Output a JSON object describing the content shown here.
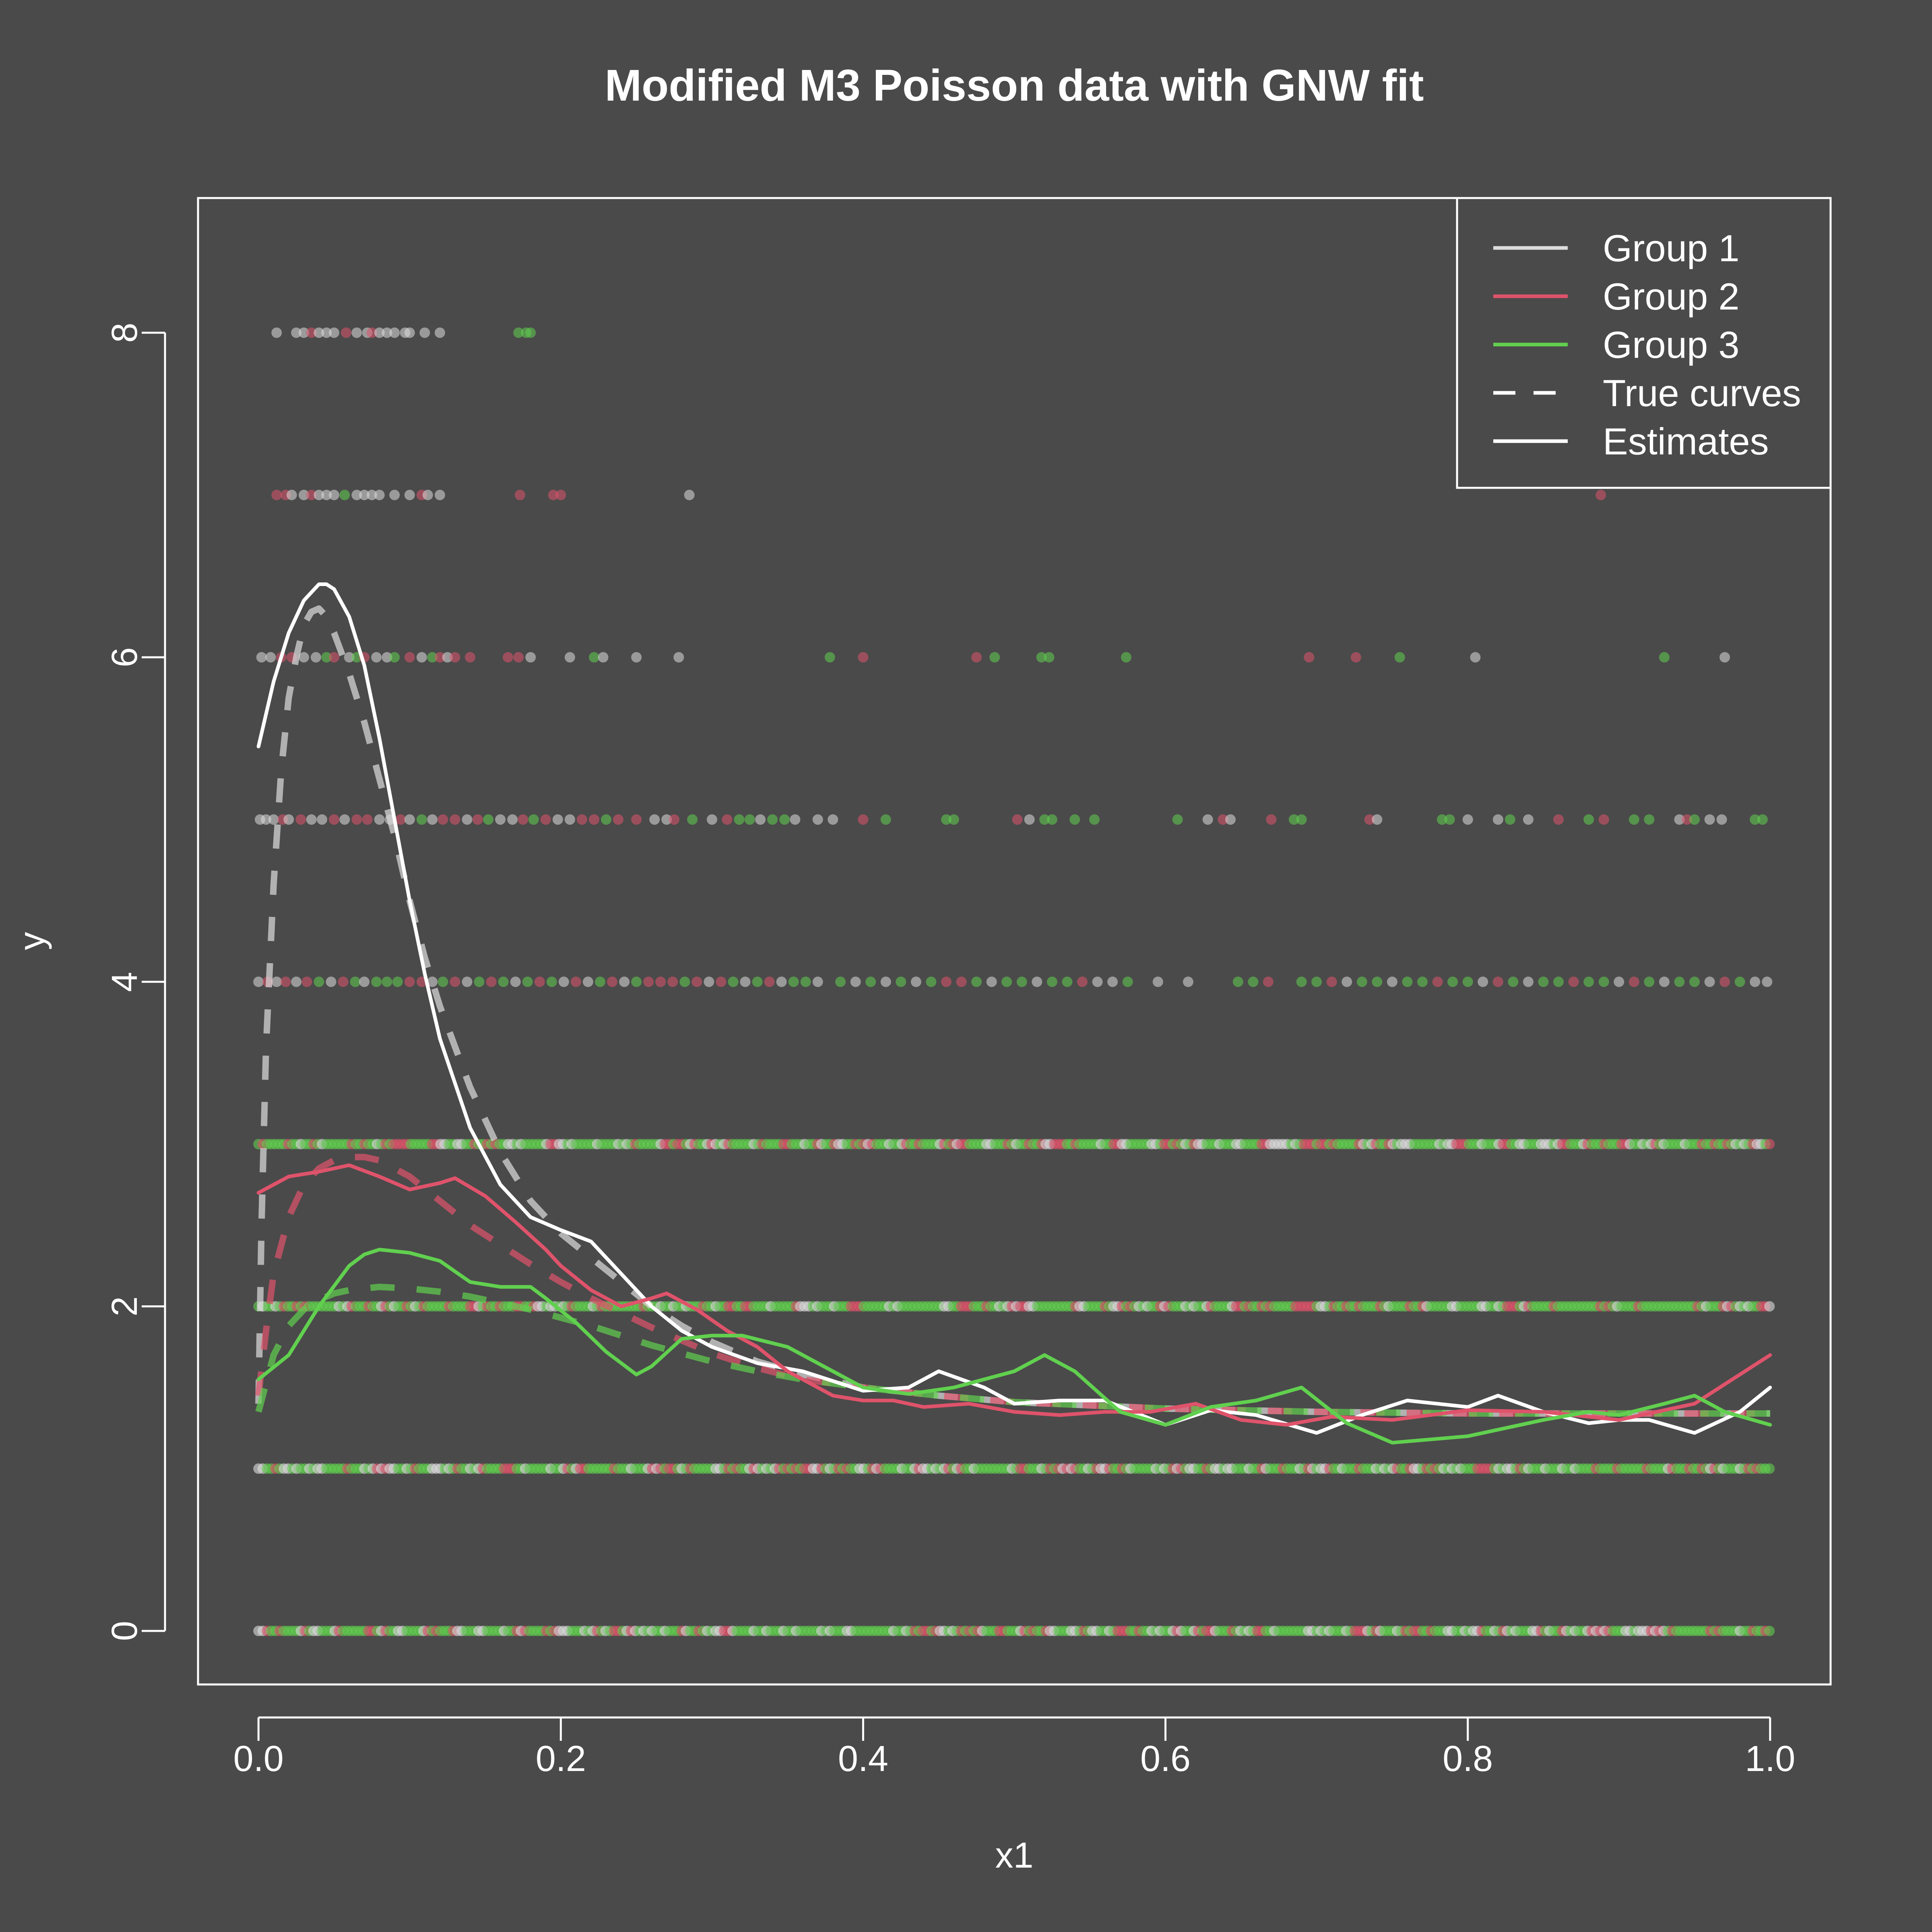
{
  "chart_data": {
    "type": "scatter",
    "title": "Modified M3 Poisson data with GNW fit",
    "xlabel": "x1",
    "ylabel": "y",
    "xlim": [
      -0.04,
      1.04
    ],
    "ylim": [
      -0.33,
      8.83
    ],
    "x_ticks": [
      "0.0",
      "0.2",
      "0.4",
      "0.6",
      "0.8",
      "1.0"
    ],
    "y_ticks": [
      "0",
      "2",
      "4",
      "6",
      "8"
    ],
    "legend_position": "top-right",
    "legend": [
      {
        "label": "Group 1",
        "color": "#DDDDDD",
        "style": "solid"
      },
      {
        "label": "Group 2",
        "color": "#DF536B",
        "style": "solid"
      },
      {
        "label": "Group 3",
        "color": "#61D04F",
        "style": "solid"
      },
      {
        "label": "True curves",
        "color": "#FFFFFF",
        "style": "dashed"
      },
      {
        "label": "Estimates",
        "color": "#FFFFFF",
        "style": "solid"
      }
    ],
    "colors": {
      "group1": "#DDDDDD",
      "group2": "#DF536B",
      "group3": "#61D04F",
      "background": "#4A4A4A",
      "frame": "#FFFFFF"
    },
    "point_levels": [
      {
        "y": 8,
        "x": [
          0.012,
          0.025,
          0.03,
          0.035,
          0.04,
          0.045,
          0.05,
          0.058,
          0.065,
          0.072,
          0.075,
          0.08,
          0.085,
          0.09,
          0.097,
          0.1,
          0.11,
          0.12,
          0.172,
          0.177,
          0.18
        ],
        "g": [
          1,
          1,
          1,
          2,
          1,
          1,
          1,
          2,
          1,
          1,
          2,
          1,
          1,
          1,
          1,
          1,
          1,
          1,
          3,
          3,
          3
        ]
      },
      {
        "y": 7,
        "x": [
          0.012,
          0.018,
          0.022,
          0.03,
          0.035,
          0.04,
          0.045,
          0.05,
          0.057,
          0.065,
          0.07,
          0.075,
          0.08,
          0.09,
          0.1,
          0.108,
          0.112,
          0.12,
          0.173,
          0.195,
          0.2,
          0.285,
          0.888
        ],
        "g": [
          2,
          2,
          1,
          1,
          2,
          1,
          1,
          1,
          3,
          1,
          1,
          1,
          1,
          1,
          1,
          2,
          1,
          1,
          2,
          2,
          2,
          1,
          2
        ]
      },
      {
        "y": 6,
        "x": [
          0.002,
          0.008,
          0.015,
          0.022,
          0.03,
          0.038,
          0.045,
          0.05,
          0.06,
          0.065,
          0.07,
          0.078,
          0.085,
          0.09,
          0.1,
          0.108,
          0.115,
          0.12,
          0.125,
          0.13,
          0.14,
          0.165,
          0.172,
          0.18,
          0.206,
          0.222,
          0.228,
          0.25,
          0.278,
          0.378,
          0.4,
          0.475,
          0.487,
          0.518,
          0.523,
          0.574,
          0.695,
          0.726,
          0.755,
          0.805,
          0.93,
          0.97
        ],
        "g": [
          1,
          1,
          2,
          2,
          1,
          1,
          3,
          2,
          1,
          3,
          2,
          1,
          1,
          3,
          2,
          1,
          3,
          2,
          1,
          2,
          2,
          2,
          2,
          1,
          1,
          3,
          1,
          1,
          1,
          3,
          2,
          2,
          3,
          3,
          3,
          3,
          2,
          2,
          3,
          1,
          3,
          1
        ]
      },
      {
        "y": 5,
        "x": [
          0.001,
          0.005,
          0.01,
          0.016,
          0.02,
          0.028,
          0.035,
          0.042,
          0.05,
          0.057,
          0.065,
          0.072,
          0.08,
          0.087,
          0.094,
          0.1,
          0.108,
          0.115,
          0.122,
          0.13,
          0.138,
          0.145,
          0.152,
          0.16,
          0.168,
          0.175,
          0.182,
          0.19,
          0.198,
          0.206,
          0.214,
          0.222,
          0.23,
          0.238,
          0.25,
          0.262,
          0.27,
          0.275,
          0.287,
          0.3,
          0.31,
          0.318,
          0.325,
          0.332,
          0.34,
          0.348,
          0.355,
          0.37,
          0.38,
          0.4,
          0.415,
          0.455,
          0.46,
          0.502,
          0.51,
          0.52,
          0.525,
          0.54,
          0.553,
          0.608,
          0.628,
          0.638,
          0.643,
          0.67,
          0.685,
          0.69,
          0.735,
          0.74,
          0.783,
          0.788,
          0.8,
          0.82,
          0.828,
          0.84,
          0.86,
          0.88,
          0.89,
          0.91,
          0.92,
          0.94,
          0.945,
          0.95,
          0.96,
          0.968,
          0.99,
          0.995
        ],
        "g": [
          1,
          1,
          1,
          2,
          1,
          2,
          1,
          1,
          2,
          1,
          2,
          2,
          1,
          1,
          2,
          1,
          3,
          1,
          2,
          2,
          1,
          2,
          3,
          1,
          1,
          2,
          3,
          2,
          1,
          1,
          2,
          2,
          3,
          2,
          2,
          1,
          1,
          2,
          3,
          1,
          2,
          3,
          3,
          1,
          3,
          3,
          1,
          1,
          1,
          2,
          3,
          3,
          3,
          2,
          1,
          3,
          3,
          3,
          3,
          3,
          1,
          2,
          1,
          2,
          3,
          3,
          2,
          1,
          3,
          3,
          1,
          1,
          3,
          1,
          2,
          3,
          2,
          3,
          3,
          1,
          2,
          3,
          1,
          1,
          3,
          3
        ]
      },
      {
        "y": 4,
        "x": [
          0.0,
          0.006,
          0.012,
          0.018,
          0.025,
          0.032,
          0.04,
          0.048,
          0.056,
          0.064,
          0.07,
          0.078,
          0.085,
          0.092,
          0.1,
          0.108,
          0.115,
          0.122,
          0.13,
          0.138,
          0.146,
          0.154,
          0.162,
          0.17,
          0.178,
          0.186,
          0.194,
          0.202,
          0.21,
          0.218,
          0.226,
          0.234,
          0.242,
          0.25,
          0.258,
          0.266,
          0.274,
          0.282,
          0.29,
          0.298,
          0.306,
          0.314,
          0.322,
          0.33,
          0.338,
          0.346,
          0.354,
          0.362,
          0.37,
          0.385,
          0.395,
          0.405,
          0.415,
          0.425,
          0.435,
          0.445,
          0.455,
          0.465,
          0.475,
          0.485,
          0.495,
          0.505,
          0.515,
          0.525,
          0.535,
          0.545,
          0.555,
          0.565,
          0.575,
          0.595,
          0.615,
          0.648,
          0.658,
          0.668,
          0.69,
          0.7,
          0.71,
          0.72,
          0.73,
          0.74,
          0.75,
          0.76,
          0.77,
          0.78,
          0.79,
          0.8,
          0.81,
          0.82,
          0.83,
          0.84,
          0.85,
          0.86,
          0.87,
          0.88,
          0.89,
          0.9,
          0.91,
          0.92,
          0.93,
          0.94,
          0.95,
          0.96,
          0.97,
          0.98,
          0.99,
          0.998
        ],
        "g": [
          1,
          2,
          1,
          2,
          1,
          2,
          3,
          1,
          2,
          3,
          1,
          3,
          3,
          3,
          2,
          2,
          1,
          3,
          2,
          1,
          3,
          2,
          3,
          1,
          3,
          2,
          3,
          1,
          2,
          1,
          3,
          2,
          1,
          3,
          2,
          2,
          2,
          3,
          2,
          1,
          2,
          3,
          1,
          3,
          2,
          1,
          3,
          3,
          1,
          3,
          1,
          3,
          1,
          3,
          1,
          3,
          2,
          2,
          3,
          1,
          3,
          3,
          1,
          3,
          3,
          2,
          1,
          1,
          3,
          1,
          1,
          3,
          3,
          2,
          3,
          3,
          2,
          1,
          3,
          3,
          1,
          3,
          3,
          2,
          3,
          3,
          1,
          2,
          3,
          1,
          3,
          3,
          2,
          3,
          3,
          1,
          2,
          3,
          1,
          3,
          3,
          1,
          2,
          3,
          1,
          1
        ]
      }
    ],
    "dense_levels": [
      {
        "y": 3,
        "from": 0.0,
        "to": 1.0
      },
      {
        "y": 2,
        "from": 0.0,
        "to": 1.0
      },
      {
        "y": 1,
        "from": 0.0,
        "to": 1.0
      },
      {
        "y": 0,
        "from": 0.0,
        "to": 1.0
      }
    ],
    "series": [
      {
        "group": 1,
        "kind": "true",
        "color": "#DDDDDD",
        "x": [
          0.0,
          0.002,
          0.005,
          0.01,
          0.015,
          0.02,
          0.025,
          0.03,
          0.035,
          0.04,
          0.045,
          0.05,
          0.06,
          0.07,
          0.08,
          0.09,
          0.1,
          0.11,
          0.12,
          0.14,
          0.16,
          0.18,
          0.2,
          0.22,
          0.24,
          0.26,
          0.28,
          0.3,
          0.33,
          0.36,
          0.4,
          0.45,
          0.5,
          0.6,
          0.7,
          0.8,
          0.9,
          1.0
        ],
        "y": [
          1.4,
          2.5,
          3.6,
          4.6,
          5.3,
          5.75,
          6.0,
          6.2,
          6.28,
          6.3,
          6.25,
          6.15,
          5.9,
          5.6,
          5.25,
          4.9,
          4.5,
          4.15,
          3.85,
          3.35,
          2.95,
          2.65,
          2.45,
          2.3,
          2.15,
          2.0,
          1.88,
          1.78,
          1.66,
          1.58,
          1.5,
          1.45,
          1.41,
          1.37,
          1.35,
          1.34,
          1.34,
          1.34
        ]
      },
      {
        "group": 2,
        "kind": "true",
        "color": "#DF536B",
        "x": [
          0.0,
          0.005,
          0.01,
          0.02,
          0.03,
          0.04,
          0.05,
          0.06,
          0.07,
          0.08,
          0.1,
          0.12,
          0.14,
          0.16,
          0.18,
          0.2,
          0.22,
          0.24,
          0.26,
          0.28,
          0.3,
          0.33,
          0.36,
          0.4,
          0.45,
          0.5,
          0.6,
          0.7,
          0.8,
          0.9,
          1.0
        ],
        "y": [
          1.45,
          1.85,
          2.2,
          2.55,
          2.75,
          2.85,
          2.9,
          2.92,
          2.92,
          2.9,
          2.8,
          2.65,
          2.5,
          2.38,
          2.26,
          2.15,
          2.05,
          1.96,
          1.87,
          1.79,
          1.71,
          1.62,
          1.55,
          1.5,
          1.45,
          1.41,
          1.37,
          1.35,
          1.34,
          1.34,
          1.34
        ]
      },
      {
        "group": 3,
        "kind": "true",
        "color": "#61D04F",
        "x": [
          0.0,
          0.01,
          0.02,
          0.03,
          0.04,
          0.05,
          0.06,
          0.07,
          0.08,
          0.1,
          0.12,
          0.14,
          0.16,
          0.18,
          0.2,
          0.22,
          0.24,
          0.26,
          0.28,
          0.3,
          0.33,
          0.36,
          0.4,
          0.45,
          0.5,
          0.6,
          0.7,
          0.8,
          0.9,
          1.0
        ],
        "y": [
          1.35,
          1.7,
          1.88,
          1.98,
          2.04,
          2.08,
          2.1,
          2.11,
          2.12,
          2.11,
          2.09,
          2.06,
          2.02,
          1.98,
          1.93,
          1.88,
          1.82,
          1.76,
          1.71,
          1.66,
          1.6,
          1.55,
          1.5,
          1.45,
          1.41,
          1.37,
          1.35,
          1.34,
          1.34,
          1.34
        ]
      },
      {
        "group": 1,
        "kind": "estimate",
        "color": "#FFFFFF",
        "x": [
          0.0,
          0.01,
          0.02,
          0.03,
          0.04,
          0.045,
          0.05,
          0.06,
          0.07,
          0.08,
          0.09,
          0.1,
          0.11,
          0.12,
          0.14,
          0.16,
          0.18,
          0.2,
          0.22,
          0.24,
          0.26,
          0.28,
          0.3,
          0.33,
          0.36,
          0.4,
          0.43,
          0.45,
          0.48,
          0.5,
          0.53,
          0.56,
          0.6,
          0.63,
          0.66,
          0.7,
          0.73,
          0.76,
          0.8,
          0.82,
          0.85,
          0.88,
          0.9,
          0.92,
          0.95,
          0.98,
          1.0
        ],
        "y": [
          5.45,
          5.85,
          6.15,
          6.35,
          6.45,
          6.45,
          6.42,
          6.25,
          5.95,
          5.5,
          5.0,
          4.5,
          4.05,
          3.65,
          3.1,
          2.75,
          2.55,
          2.47,
          2.4,
          2.2,
          2.0,
          1.85,
          1.75,
          1.65,
          1.6,
          1.48,
          1.5,
          1.6,
          1.5,
          1.4,
          1.42,
          1.42,
          1.27,
          1.36,
          1.33,
          1.22,
          1.33,
          1.42,
          1.38,
          1.45,
          1.35,
          1.28,
          1.3,
          1.3,
          1.22,
          1.35,
          1.5
        ]
      },
      {
        "group": 2,
        "kind": "estimate",
        "color": "#DF536B",
        "x": [
          0.0,
          0.02,
          0.04,
          0.06,
          0.08,
          0.1,
          0.12,
          0.13,
          0.15,
          0.17,
          0.19,
          0.2,
          0.22,
          0.24,
          0.26,
          0.27,
          0.29,
          0.31,
          0.33,
          0.35,
          0.38,
          0.4,
          0.42,
          0.44,
          0.47,
          0.5,
          0.53,
          0.56,
          0.59,
          0.62,
          0.65,
          0.68,
          0.71,
          0.75,
          0.8,
          0.85,
          0.9,
          0.95,
          1.0
        ],
        "y": [
          2.7,
          2.8,
          2.83,
          2.87,
          2.8,
          2.72,
          2.76,
          2.79,
          2.68,
          2.52,
          2.35,
          2.25,
          2.1,
          2.0,
          2.05,
          2.08,
          1.98,
          1.85,
          1.75,
          1.6,
          1.45,
          1.42,
          1.42,
          1.38,
          1.4,
          1.35,
          1.33,
          1.35,
          1.35,
          1.4,
          1.3,
          1.27,
          1.32,
          1.3,
          1.36,
          1.35,
          1.3,
          1.4,
          1.7
        ]
      },
      {
        "group": 3,
        "kind": "estimate",
        "color": "#61D04F",
        "x": [
          0.0,
          0.02,
          0.04,
          0.06,
          0.07,
          0.08,
          0.1,
          0.12,
          0.14,
          0.16,
          0.18,
          0.19,
          0.21,
          0.23,
          0.25,
          0.26,
          0.28,
          0.3,
          0.32,
          0.35,
          0.38,
          0.4,
          0.43,
          0.46,
          0.5,
          0.52,
          0.54,
          0.57,
          0.6,
          0.63,
          0.66,
          0.69,
          0.72,
          0.75,
          0.8,
          0.85,
          0.88,
          0.9,
          0.93,
          0.95,
          0.97,
          1.0
        ],
        "y": [
          1.55,
          1.7,
          2.0,
          2.25,
          2.32,
          2.35,
          2.33,
          2.28,
          2.15,
          2.12,
          2.12,
          2.05,
          1.9,
          1.72,
          1.58,
          1.63,
          1.8,
          1.82,
          1.82,
          1.75,
          1.6,
          1.5,
          1.46,
          1.5,
          1.6,
          1.7,
          1.6,
          1.35,
          1.27,
          1.38,
          1.42,
          1.5,
          1.28,
          1.16,
          1.2,
          1.3,
          1.35,
          1.33,
          1.4,
          1.45,
          1.35,
          1.27
        ]
      }
    ]
  }
}
